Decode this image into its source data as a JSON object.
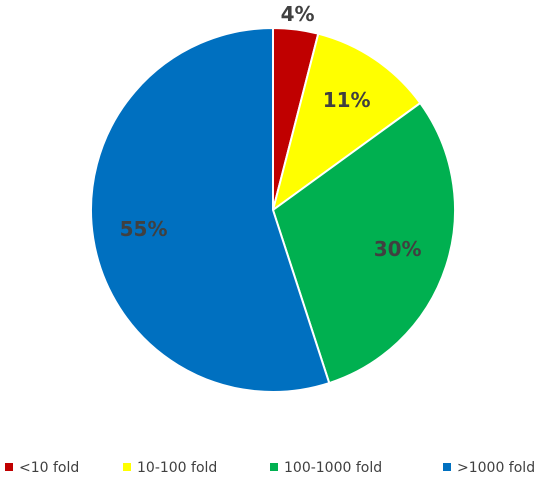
{
  "chart_data": {
    "type": "pie",
    "categories": [
      "<10 fold",
      "10-100 fold",
      "100-1000 fold",
      ">1000 fold"
    ],
    "values": [
      4,
      11,
      30,
      55
    ],
    "value_labels": [
      "4%",
      "11%",
      "30%",
      "55%"
    ],
    "colors": [
      "#c00000",
      "#ffff00",
      "#00b050",
      "#0070c0"
    ],
    "legend": "bottom"
  }
}
